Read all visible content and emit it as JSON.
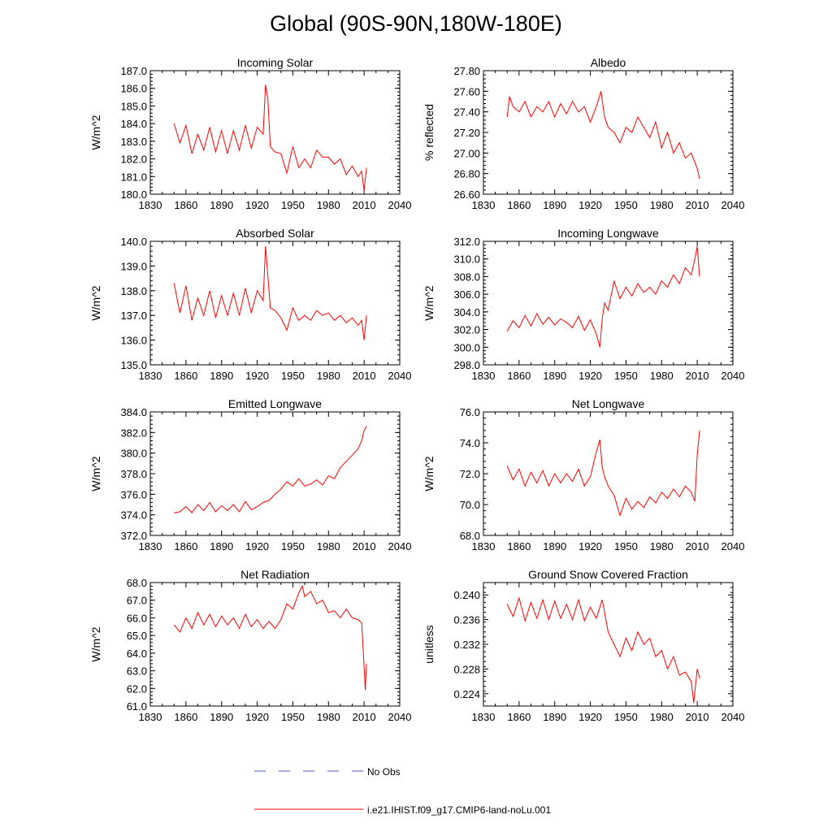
{
  "title": "Global (90S-90N,180W-180E)",
  "legend": [
    {
      "label": "No Obs",
      "color": "#5555cc",
      "style": "dashed"
    },
    {
      "label": "i.e21.IHIST.f09_g17.CMIP6-land-noLu.001",
      "color": "#ff0000",
      "style": "solid"
    }
  ],
  "chart_data": [
    {
      "type": "line",
      "title": "Incoming Solar",
      "ylabel": "W/m^2",
      "xlim": [
        1830,
        2040
      ],
      "ylim": [
        180.0,
        187.0
      ],
      "xticks": [
        1830,
        1860,
        1890,
        1920,
        1950,
        1980,
        2010,
        2040
      ],
      "yticks": [
        "180.0",
        "181.0",
        "182.0",
        "183.0",
        "184.0",
        "185.0",
        "186.0",
        "187.0"
      ],
      "series": [
        {
          "x": [
            1850,
            1855,
            1860,
            1865,
            1870,
            1875,
            1880,
            1885,
            1890,
            1895,
            1900,
            1905,
            1910,
            1915,
            1920,
            1925,
            1927,
            1929,
            1931,
            1935,
            1940,
            1945,
            1950,
            1955,
            1960,
            1965,
            1970,
            1975,
            1980,
            1985,
            1990,
            1995,
            2000,
            2005,
            2008,
            2010,
            2012
          ],
          "y": [
            184.0,
            182.9,
            183.9,
            182.3,
            183.4,
            182.5,
            183.8,
            182.4,
            183.6,
            182.3,
            183.6,
            182.5,
            183.9,
            182.6,
            183.8,
            183.4,
            186.2,
            185.4,
            182.7,
            182.4,
            182.3,
            181.2,
            182.7,
            181.5,
            182.0,
            181.5,
            182.5,
            182.1,
            182.1,
            181.7,
            182.0,
            181.1,
            181.6,
            181.0,
            181.3,
            180.2,
            181.5
          ]
        }
      ]
    },
    {
      "type": "line",
      "title": "Albedo",
      "ylabel": "% reflected",
      "xlim": [
        1830,
        2040
      ],
      "ylim": [
        26.6,
        27.8
      ],
      "xticks": [
        1830,
        1860,
        1890,
        1920,
        1950,
        1980,
        2010,
        2040
      ],
      "yticks": [
        "26.60",
        "26.80",
        "27.00",
        "27.20",
        "27.40",
        "27.60",
        "27.80"
      ],
      "series": [
        {
          "x": [
            1850,
            1852,
            1855,
            1860,
            1865,
            1870,
            1875,
            1880,
            1885,
            1890,
            1895,
            1900,
            1905,
            1910,
            1915,
            1920,
            1925,
            1929,
            1932,
            1935,
            1940,
            1945,
            1950,
            1955,
            1960,
            1965,
            1970,
            1975,
            1980,
            1985,
            1990,
            1995,
            2000,
            2005,
            2010,
            2012
          ],
          "y": [
            27.35,
            27.55,
            27.45,
            27.4,
            27.5,
            27.35,
            27.45,
            27.4,
            27.5,
            27.35,
            27.48,
            27.38,
            27.5,
            27.4,
            27.45,
            27.3,
            27.45,
            27.6,
            27.35,
            27.25,
            27.2,
            27.1,
            27.25,
            27.2,
            27.35,
            27.25,
            27.15,
            27.3,
            27.05,
            27.2,
            27.0,
            27.1,
            26.95,
            27.0,
            26.85,
            26.75
          ]
        }
      ]
    },
    {
      "type": "line",
      "title": "Absorbed Solar",
      "ylabel": "W/m^2",
      "xlim": [
        1830,
        2040
      ],
      "ylim": [
        135.0,
        140.0
      ],
      "xticks": [
        1830,
        1860,
        1890,
        1920,
        1950,
        1980,
        2010,
        2040
      ],
      "yticks": [
        "135.0",
        "136.0",
        "137.0",
        "138.0",
        "139.0",
        "140.0"
      ],
      "series": [
        {
          "x": [
            1850,
            1855,
            1860,
            1865,
            1870,
            1875,
            1880,
            1885,
            1890,
            1895,
            1900,
            1905,
            1910,
            1915,
            1920,
            1925,
            1927,
            1929,
            1931,
            1935,
            1940,
            1945,
            1950,
            1955,
            1960,
            1965,
            1970,
            1975,
            1980,
            1985,
            1990,
            1995,
            2000,
            2005,
            2008,
            2010,
            2012
          ],
          "y": [
            138.3,
            137.1,
            138.2,
            136.8,
            137.7,
            137.0,
            138.0,
            136.9,
            137.8,
            137.0,
            137.9,
            137.0,
            138.1,
            137.1,
            138.0,
            137.6,
            139.8,
            138.6,
            137.3,
            137.2,
            136.9,
            136.4,
            137.3,
            136.8,
            137.0,
            136.8,
            137.2,
            137.0,
            137.1,
            136.8,
            137.0,
            136.7,
            136.9,
            136.6,
            136.8,
            136.0,
            137.0
          ]
        }
      ]
    },
    {
      "type": "line",
      "title": "Incoming Longwave",
      "ylabel": "W/m^2",
      "xlim": [
        1830,
        2040
      ],
      "ylim": [
        298.0,
        312.0
      ],
      "xticks": [
        1830,
        1860,
        1890,
        1920,
        1950,
        1980,
        2010,
        2040
      ],
      "yticks": [
        "298.0",
        "300.0",
        "302.0",
        "304.0",
        "306.0",
        "308.0",
        "310.0",
        "312.0"
      ],
      "series": [
        {
          "x": [
            1850,
            1855,
            1860,
            1865,
            1870,
            1875,
            1880,
            1885,
            1890,
            1895,
            1900,
            1905,
            1910,
            1915,
            1920,
            1925,
            1928,
            1930,
            1932,
            1935,
            1940,
            1945,
            1950,
            1955,
            1960,
            1965,
            1970,
            1975,
            1980,
            1985,
            1990,
            1995,
            2000,
            2005,
            2008,
            2010,
            2012
          ],
          "y": [
            301.8,
            303.0,
            302.2,
            303.6,
            302.4,
            303.8,
            302.6,
            303.4,
            302.5,
            303.2,
            302.8,
            302.2,
            303.5,
            301.9,
            303.1,
            301.5,
            300.0,
            303.2,
            305.0,
            304.2,
            307.5,
            305.5,
            306.8,
            305.8,
            307.2,
            306.2,
            306.8,
            306.0,
            307.5,
            306.8,
            308.2,
            307.2,
            309.0,
            308.2,
            310.0,
            311.4,
            308.0
          ]
        }
      ]
    },
    {
      "type": "line",
      "title": "Emitted Longwave",
      "ylabel": "W/m^2",
      "xlim": [
        1830,
        2040
      ],
      "ylim": [
        372.0,
        384.0
      ],
      "xticks": [
        1830,
        1860,
        1890,
        1920,
        1950,
        1980,
        2010,
        2040
      ],
      "yticks": [
        "372.0",
        "374.0",
        "376.0",
        "378.0",
        "380.0",
        "382.0",
        "384.0"
      ],
      "series": [
        {
          "x": [
            1850,
            1855,
            1860,
            1865,
            1870,
            1875,
            1880,
            1885,
            1890,
            1895,
            1900,
            1905,
            1910,
            1915,
            1920,
            1925,
            1930,
            1935,
            1940,
            1945,
            1950,
            1955,
            1960,
            1965,
            1970,
            1975,
            1980,
            1985,
            1990,
            1995,
            2000,
            2005,
            2008,
            2010,
            2012
          ],
          "y": [
            374.2,
            374.3,
            374.8,
            374.2,
            375.0,
            374.4,
            375.2,
            374.3,
            374.9,
            374.4,
            375.0,
            374.3,
            375.3,
            374.5,
            374.8,
            375.2,
            375.4,
            376.0,
            376.5,
            377.2,
            376.8,
            377.5,
            376.8,
            377.0,
            377.4,
            376.9,
            377.8,
            377.5,
            378.6,
            379.2,
            379.8,
            380.4,
            381.2,
            382.2,
            382.6
          ]
        }
      ]
    },
    {
      "type": "line",
      "title": "Net Longwave",
      "ylabel": "W/m^2",
      "xlim": [
        1830,
        2040
      ],
      "ylim": [
        68.0,
        76.0
      ],
      "xticks": [
        1830,
        1860,
        1890,
        1920,
        1950,
        1980,
        2010,
        2040
      ],
      "yticks": [
        "68.0",
        "70.0",
        "72.0",
        "74.0",
        "76.0"
      ],
      "series": [
        {
          "x": [
            1850,
            1855,
            1860,
            1865,
            1870,
            1875,
            1880,
            1885,
            1890,
            1895,
            1900,
            1905,
            1910,
            1915,
            1920,
            1925,
            1928,
            1930,
            1932,
            1935,
            1940,
            1945,
            1950,
            1955,
            1960,
            1965,
            1970,
            1975,
            1980,
            1985,
            1990,
            1995,
            2000,
            2005,
            2008,
            2010,
            2012
          ],
          "y": [
            72.5,
            71.6,
            72.3,
            71.2,
            72.1,
            71.4,
            72.2,
            71.2,
            72.0,
            71.4,
            72.0,
            71.5,
            72.3,
            71.2,
            71.8,
            73.4,
            74.2,
            72.4,
            71.8,
            71.2,
            70.6,
            69.3,
            70.4,
            69.7,
            70.2,
            69.8,
            70.5,
            70.1,
            70.8,
            70.4,
            71.0,
            70.5,
            71.2,
            70.8,
            70.2,
            73.2,
            74.8
          ]
        }
      ]
    },
    {
      "type": "line",
      "title": "Net Radiation",
      "ylabel": "W/m^2",
      "xlim": [
        1830,
        2040
      ],
      "ylim": [
        61.0,
        68.0
      ],
      "xticks": [
        1830,
        1860,
        1890,
        1920,
        1950,
        1980,
        2010,
        2040
      ],
      "yticks": [
        "61.0",
        "62.0",
        "63.0",
        "64.0",
        "65.0",
        "66.0",
        "67.0",
        "68.0"
      ],
      "series": [
        {
          "x": [
            1850,
            1855,
            1860,
            1865,
            1870,
            1875,
            1880,
            1885,
            1890,
            1895,
            1900,
            1905,
            1910,
            1915,
            1920,
            1925,
            1930,
            1935,
            1940,
            1945,
            1950,
            1955,
            1958,
            1960,
            1965,
            1970,
            1975,
            1980,
            1985,
            1990,
            1995,
            2000,
            2005,
            2008,
            2010,
            2011,
            2012
          ],
          "y": [
            65.6,
            65.2,
            66.0,
            65.4,
            66.3,
            65.6,
            66.2,
            65.5,
            66.1,
            65.6,
            66.0,
            65.4,
            66.2,
            65.5,
            65.9,
            65.4,
            65.8,
            65.4,
            65.9,
            66.8,
            66.5,
            67.4,
            67.8,
            67.2,
            67.5,
            66.8,
            67.0,
            66.3,
            66.4,
            66.0,
            66.5,
            66.0,
            65.9,
            65.7,
            63.3,
            61.9,
            63.4
          ]
        }
      ]
    },
    {
      "type": "line",
      "title": "Ground Snow Covered Fraction",
      "ylabel": "unitless",
      "xlim": [
        1830,
        2040
      ],
      "ylim": [
        0.222,
        0.242
      ],
      "xticks": [
        1830,
        1860,
        1890,
        1920,
        1950,
        1980,
        2010,
        2040
      ],
      "yticks": [
        "0.224",
        "0.228",
        "0.232",
        "0.236",
        "0.240"
      ],
      "series": [
        {
          "x": [
            1850,
            1855,
            1860,
            1865,
            1870,
            1875,
            1880,
            1885,
            1890,
            1895,
            1900,
            1905,
            1910,
            1915,
            1920,
            1925,
            1930,
            1935,
            1940,
            1945,
            1950,
            1955,
            1960,
            1965,
            1970,
            1975,
            1980,
            1985,
            1990,
            1995,
            2000,
            2005,
            2007,
            2010,
            2012
          ],
          "y": [
            0.2385,
            0.2365,
            0.2395,
            0.2358,
            0.2388,
            0.2362,
            0.2392,
            0.236,
            0.239,
            0.2362,
            0.2385,
            0.236,
            0.2392,
            0.2358,
            0.238,
            0.2362,
            0.2392,
            0.234,
            0.232,
            0.23,
            0.233,
            0.231,
            0.234,
            0.232,
            0.233,
            0.23,
            0.231,
            0.228,
            0.23,
            0.227,
            0.2275,
            0.226,
            0.2225,
            0.228,
            0.2265
          ]
        }
      ]
    }
  ]
}
